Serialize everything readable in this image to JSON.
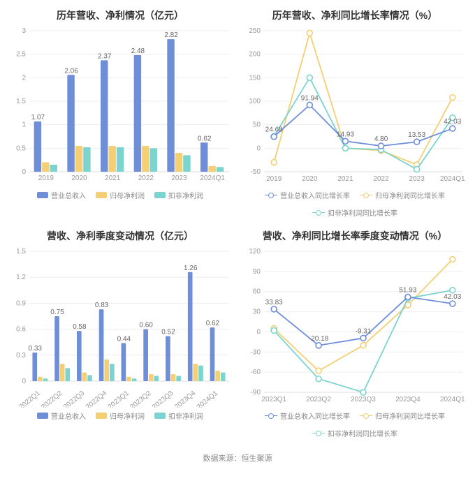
{
  "source_text": "数据来源：恒生聚源",
  "colors": {
    "series_blue": "#6e8ed8",
    "series_yellow": "#f4cf73",
    "series_teal": "#7bd4cf",
    "line_blue": "#6e8ed8",
    "line_yellow": "#f4cf73",
    "line_teal": "#7bd4cf",
    "grid": "#eeeeee",
    "axis": "#dddddd",
    "tick_text": "#999999",
    "val_text": "#666666",
    "title_text": "#333333",
    "background": "#ffffff"
  },
  "panel_a": {
    "title": "历年营收、净利情况（亿元）",
    "type": "bar",
    "categories": [
      "2019",
      "2020",
      "2021",
      "2022",
      "2023",
      "2024Q1"
    ],
    "series": [
      {
        "name": "营业总收入",
        "color_key": "series_blue",
        "values": [
          1.07,
          2.06,
          2.37,
          2.48,
          2.82,
          0.62
        ],
        "value_labels": [
          "1.07",
          "2.06",
          "2.37",
          "2.48",
          "2.82",
          "0.62"
        ]
      },
      {
        "name": "归母净利润",
        "color_key": "series_yellow",
        "values": [
          0.2,
          0.55,
          0.55,
          0.55,
          0.4,
          0.12
        ]
      },
      {
        "name": "扣非净利润",
        "color_key": "series_teal",
        "values": [
          0.15,
          0.52,
          0.52,
          0.5,
          0.35,
          0.1
        ]
      }
    ],
    "ylim": [
      0,
      3
    ],
    "ytick_step": 0.5,
    "bar_group_width": 0.72,
    "label_fontsize": 10,
    "title_fontsize": 14,
    "legend_labels": [
      "营业总收入",
      "归母净利润",
      "扣非净利润"
    ]
  },
  "panel_b": {
    "title": "历年营收、净利同比增长率情况（%）",
    "type": "line",
    "categories": [
      "2019",
      "2020",
      "2021",
      "2022",
      "2023",
      "2024Q1"
    ],
    "series": [
      {
        "name": "营业总收入同比增长率",
        "color_key": "line_blue",
        "values": [
          24.68,
          91.94,
          14.93,
          4.8,
          13.53,
          42.03
        ],
        "value_labels": [
          "24.68",
          "91.94",
          "14.93",
          "4.80",
          "13.53",
          "42.03"
        ]
      },
      {
        "name": "归母净利润同比增长率",
        "color_key": "line_yellow",
        "values": [
          -30,
          245,
          0,
          -5,
          -35,
          108
        ]
      },
      {
        "name": "扣非净利润同比增长率",
        "color_key": "line_teal",
        "values": [
          25,
          150,
          0,
          -3,
          -45,
          65
        ]
      }
    ],
    "ylim": [
      -50,
      250
    ],
    "ytick_step": 50,
    "marker": "circle",
    "marker_size": 4,
    "line_width": 1.8,
    "label_fontsize": 10,
    "title_fontsize": 14,
    "legend_labels": [
      "营业总收入同比增长率",
      "归母净利润同比增长率",
      "扣非净利润同比增长率"
    ]
  },
  "panel_c": {
    "title": "营收、净利季度变动情况（亿元）",
    "type": "bar",
    "categories": [
      "2022Q1",
      "2022Q2",
      "2022Q3",
      "2022Q4",
      "2023Q1",
      "2023Q2",
      "2023Q3",
      "2023Q4",
      "2024Q1"
    ],
    "rotate_xticks": -40,
    "series": [
      {
        "name": "营业总收入",
        "color_key": "series_blue",
        "values": [
          0.33,
          0.75,
          0.58,
          0.83,
          0.44,
          0.6,
          0.52,
          1.26,
          0.62
        ],
        "value_labels": [
          "0.33",
          "0.75",
          "0.58",
          "0.83",
          "0.44",
          "0.60",
          "0.52",
          "1.26",
          "0.62"
        ]
      },
      {
        "name": "归母净利润",
        "color_key": "series_yellow",
        "values": [
          0.05,
          0.2,
          0.1,
          0.25,
          0.05,
          0.08,
          0.08,
          0.2,
          0.12
        ]
      },
      {
        "name": "扣非净利润",
        "color_key": "series_teal",
        "values": [
          0.03,
          0.15,
          0.07,
          0.2,
          0.03,
          0.06,
          0.06,
          0.18,
          0.1
        ]
      }
    ],
    "ylim": [
      0,
      1.5
    ],
    "ytick_step": 0.3,
    "bar_group_width": 0.72,
    "label_fontsize": 10,
    "title_fontsize": 14,
    "legend_labels": [
      "营业总收入",
      "归母净利润",
      "扣非净利润"
    ]
  },
  "panel_d": {
    "title": "营收、净利同比增长率季度变动情况（%）",
    "type": "line",
    "categories": [
      "2023Q1",
      "2023Q2",
      "2023Q3",
      "2023Q4",
      "2024Q1"
    ],
    "series": [
      {
        "name": "营业总收入同比增长率",
        "color_key": "line_blue",
        "values": [
          33.83,
          -20.18,
          -9.31,
          51.93,
          42.03
        ],
        "value_labels": [
          "33.83",
          "-20.18",
          "-9.31",
          "51.93",
          "42.03"
        ]
      },
      {
        "name": "归母净利润同比增长率",
        "color_key": "line_yellow",
        "values": [
          5,
          -58,
          -20,
          40,
          108
        ]
      },
      {
        "name": "扣非净利润同比增长率",
        "color_key": "line_teal",
        "values": [
          2,
          -70,
          -90,
          50,
          62
        ]
      }
    ],
    "ylim": [
      -90,
      120
    ],
    "ytick_step": 30,
    "marker": "circle",
    "marker_size": 4,
    "line_width": 1.8,
    "label_fontsize": 10,
    "title_fontsize": 14,
    "legend_labels": [
      "营业总收入同比增长率",
      "归母净利润同比增长率",
      "扣非净利润同比增长率"
    ]
  }
}
